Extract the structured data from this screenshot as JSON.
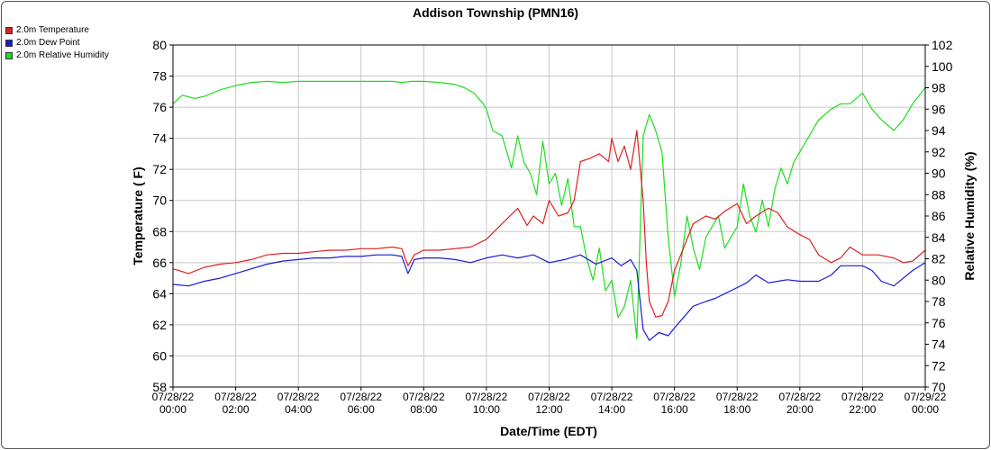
{
  "chart_data": {
    "type": "line",
    "title": "Addison Township (PMN16)",
    "xlabel": "Date/Time (EDT)",
    "ylabel": "Temperature ( F)",
    "y2label": "Relative Humidity (%)",
    "ylim": [
      58,
      80
    ],
    "y2lim": [
      70,
      102
    ],
    "xlim_hours": [
      0,
      24
    ],
    "grid": true,
    "legend_position": "top-left",
    "x_ticks": [
      {
        "h": 0,
        "date": "07/28/22",
        "time": "00:00"
      },
      {
        "h": 2,
        "date": "07/28/22",
        "time": "02:00"
      },
      {
        "h": 4,
        "date": "07/28/22",
        "time": "04:00"
      },
      {
        "h": 6,
        "date": "07/28/22",
        "time": "06:00"
      },
      {
        "h": 8,
        "date": "07/28/22",
        "time": "08:00"
      },
      {
        "h": 10,
        "date": "07/28/22",
        "time": "10:00"
      },
      {
        "h": 12,
        "date": "07/28/22",
        "time": "12:00"
      },
      {
        "h": 14,
        "date": "07/28/22",
        "time": "14:00"
      },
      {
        "h": 16,
        "date": "07/28/22",
        "time": "16:00"
      },
      {
        "h": 18,
        "date": "07/28/22",
        "time": "18:00"
      },
      {
        "h": 20,
        "date": "07/28/22",
        "time": "20:00"
      },
      {
        "h": 22,
        "date": "07/28/22",
        "time": "22:00"
      },
      {
        "h": 24,
        "date": "07/29/22",
        "time": "00:00"
      }
    ],
    "y_ticks": [
      58,
      60,
      62,
      64,
      66,
      68,
      70,
      72,
      74,
      76,
      78,
      80
    ],
    "y2_ticks": [
      70,
      72,
      74,
      76,
      78,
      80,
      82,
      84,
      86,
      88,
      90,
      92,
      94,
      96,
      98,
      100,
      102
    ],
    "series": [
      {
        "name": "2.0m Temperature",
        "axis": "left",
        "color": "#e02020",
        "x": [
          0,
          0.5,
          1,
          1.5,
          2,
          2.5,
          3,
          3.5,
          4,
          4.5,
          5,
          5.5,
          6,
          6.5,
          7,
          7.3,
          7.5,
          7.7,
          8,
          8.5,
          9,
          9.5,
          10,
          10.5,
          11,
          11.3,
          11.5,
          11.8,
          12,
          12.3,
          12.6,
          12.8,
          13,
          13.3,
          13.6,
          13.9,
          14,
          14.2,
          14.4,
          14.6,
          14.8,
          15,
          15.1,
          15.2,
          15.4,
          15.6,
          15.8,
          16,
          16.3,
          16.6,
          17,
          17.3,
          17.6,
          18,
          18.3,
          18.6,
          19,
          19.3,
          19.6,
          20,
          20.3,
          20.6,
          21,
          21.3,
          21.6,
          22,
          22.5,
          23,
          23.3,
          23.6,
          24
        ],
        "y": [
          65.6,
          65.3,
          65.7,
          65.9,
          66.0,
          66.2,
          66.5,
          66.6,
          66.6,
          66.7,
          66.8,
          66.8,
          66.9,
          66.9,
          67.0,
          66.9,
          65.8,
          66.5,
          66.8,
          66.8,
          66.9,
          67.0,
          67.5,
          68.5,
          69.5,
          68.4,
          69.0,
          68.5,
          70.0,
          69.0,
          69.2,
          70.0,
          72.5,
          72.7,
          73.0,
          72.5,
          74.0,
          72.5,
          73.5,
          72.0,
          74.5,
          70.0,
          66.0,
          63.5,
          62.5,
          62.6,
          63.5,
          65.5,
          67.0,
          68.5,
          69.0,
          68.8,
          69.3,
          69.8,
          68.5,
          69.0,
          69.5,
          69.2,
          68.3,
          67.8,
          67.5,
          66.5,
          66.0,
          66.3,
          67.0,
          66.5,
          66.5,
          66.3,
          66.0,
          66.1,
          66.8
        ]
      },
      {
        "name": "2.0m Dew Point",
        "axis": "left",
        "color": "#1a1ad8",
        "x": [
          0,
          0.5,
          1,
          1.5,
          2,
          2.5,
          3,
          3.5,
          4,
          4.5,
          5,
          5.5,
          6,
          6.5,
          7,
          7.3,
          7.5,
          7.7,
          8,
          8.5,
          9,
          9.5,
          10,
          10.5,
          11,
          11.5,
          12,
          12.5,
          13,
          13.5,
          14,
          14.3,
          14.6,
          14.8,
          15,
          15.2,
          15.5,
          15.8,
          16,
          16.3,
          16.6,
          17,
          17.3,
          17.6,
          18,
          18.3,
          18.6,
          19,
          19.3,
          19.6,
          20,
          20.3,
          20.6,
          21,
          21.3,
          21.6,
          22,
          22.3,
          22.6,
          23,
          23.3,
          23.6,
          24
        ],
        "y": [
          64.6,
          64.5,
          64.8,
          65.0,
          65.3,
          65.6,
          65.9,
          66.1,
          66.2,
          66.3,
          66.3,
          66.4,
          66.4,
          66.5,
          66.5,
          66.4,
          65.3,
          66.2,
          66.3,
          66.3,
          66.2,
          66.0,
          66.3,
          66.5,
          66.3,
          66.5,
          66.0,
          66.2,
          66.5,
          65.9,
          66.3,
          65.8,
          66.2,
          65.5,
          61.7,
          61.0,
          61.5,
          61.3,
          61.8,
          62.5,
          63.2,
          63.5,
          63.7,
          64.0,
          64.4,
          64.7,
          65.2,
          64.7,
          64.8,
          64.9,
          64.8,
          64.8,
          64.8,
          65.2,
          65.8,
          65.8,
          65.8,
          65.5,
          64.8,
          64.5,
          65.0,
          65.5,
          66.0
        ]
      },
      {
        "name": "2.0m Relative Humidity",
        "axis": "right",
        "color": "#1fdc1f",
        "x": [
          0,
          0.3,
          0.7,
          1,
          1.5,
          2,
          2.5,
          3,
          3.5,
          4,
          4.5,
          5,
          5.5,
          6,
          6.5,
          7,
          7.3,
          7.6,
          8,
          8.5,
          9,
          9.3,
          9.6,
          9.9,
          10,
          10.2,
          10.5,
          10.8,
          11,
          11.2,
          11.4,
          11.6,
          11.8,
          12,
          12.2,
          12.4,
          12.6,
          12.8,
          13,
          13.2,
          13.4,
          13.6,
          13.8,
          14,
          14.2,
          14.4,
          14.6,
          14.8,
          15,
          15.2,
          15.4,
          15.6,
          15.8,
          16,
          16.2,
          16.4,
          16.6,
          16.8,
          17,
          17.2,
          17.4,
          17.6,
          17.8,
          18,
          18.2,
          18.4,
          18.6,
          18.8,
          19,
          19.2,
          19.4,
          19.6,
          19.8,
          20,
          20.3,
          20.6,
          21,
          21.3,
          21.6,
          22,
          22.3,
          22.6,
          23,
          23.3,
          23.6,
          24
        ],
        "y": [
          96.5,
          97.3,
          97.0,
          97.2,
          97.8,
          98.2,
          98.5,
          98.6,
          98.5,
          98.6,
          98.6,
          98.6,
          98.6,
          98.6,
          98.6,
          98.6,
          98.5,
          98.6,
          98.6,
          98.5,
          98.3,
          98.0,
          97.5,
          96.5,
          96.0,
          94.0,
          93.5,
          90.5,
          93.5,
          91.0,
          90.0,
          88.0,
          93.0,
          89.0,
          90.0,
          87.0,
          89.5,
          85.0,
          85.0,
          82.0,
          80.0,
          83.0,
          79.0,
          80.0,
          76.5,
          77.5,
          80.0,
          74.5,
          93.5,
          95.5,
          94.0,
          92.0,
          84.0,
          78.5,
          81.5,
          86.0,
          83.0,
          81.0,
          84.0,
          85.0,
          86.0,
          83.0,
          84.0,
          85.0,
          89.0,
          86.0,
          84.5,
          87.5,
          85.0,
          88.5,
          90.5,
          89.0,
          91.0,
          92.0,
          93.5,
          95.0,
          96.0,
          96.5,
          96.5,
          97.5,
          96.0,
          95.0,
          94.0,
          95.0,
          96.5,
          98.0
        ]
      }
    ]
  }
}
